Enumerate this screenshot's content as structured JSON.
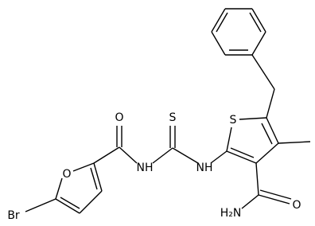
{
  "atoms": {
    "carbonyl_o": "O",
    "thione_s": "S",
    "ring_s": "S",
    "furan_o": "O",
    "bromine": "Br",
    "nh_left": "NH",
    "nh_right": "NH",
    "amide_o": "O",
    "amine": "H₂N"
  }
}
